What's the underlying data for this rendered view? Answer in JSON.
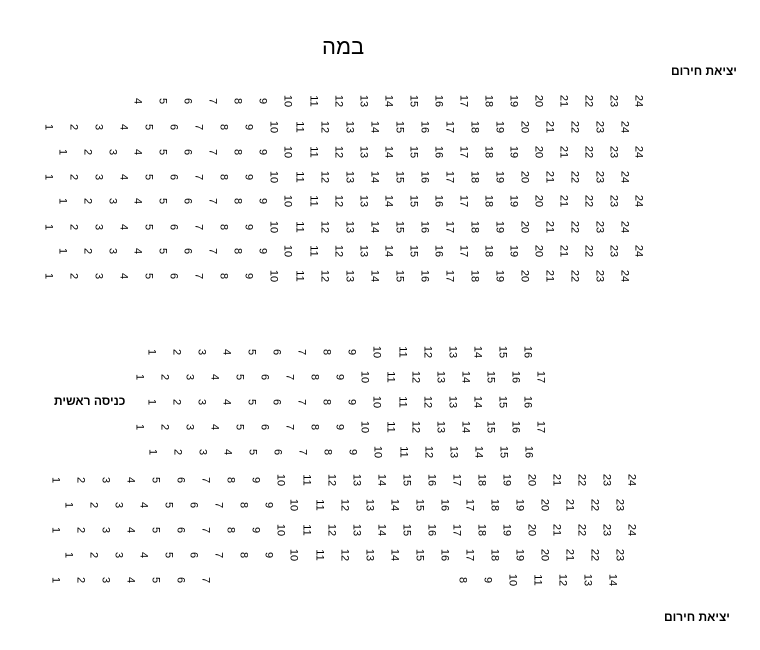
{
  "labels": {
    "stage": "במה",
    "exit_top": "יציאת חירום",
    "exit_bottom": "יציאת חירום",
    "main_entrance": "כניסה ראשית"
  },
  "rows": [
    {
      "seats": [
        4,
        5,
        6,
        7,
        8,
        9,
        10,
        11,
        12,
        13,
        14,
        15,
        16,
        17,
        18,
        19,
        20,
        21,
        22,
        23,
        24
      ]
    },
    {
      "seats": [
        1,
        2,
        3,
        4,
        5,
        6,
        7,
        8,
        9,
        10,
        11,
        12,
        13,
        14,
        15,
        16,
        17,
        18,
        19,
        20,
        21,
        22,
        23,
        24
      ]
    },
    {
      "seats": [
        1,
        2,
        3,
        4,
        5,
        6,
        7,
        8,
        9,
        10,
        11,
        12,
        13,
        14,
        15,
        16,
        17,
        18,
        19,
        20,
        21,
        22,
        23,
        24
      ]
    },
    {
      "seats": [
        1,
        2,
        3,
        4,
        5,
        6,
        7,
        8,
        9,
        10,
        11,
        12,
        13,
        14,
        15,
        16,
        17,
        18,
        19,
        20,
        21,
        22,
        23,
        24
      ]
    },
    {
      "seats": [
        1,
        2,
        3,
        4,
        5,
        6,
        7,
        8,
        9,
        10,
        11,
        12,
        13,
        14,
        15,
        16,
        17,
        18,
        19,
        20,
        21,
        22,
        23,
        24
      ]
    },
    {
      "seats": [
        1,
        2,
        3,
        4,
        5,
        6,
        7,
        8,
        9,
        10,
        11,
        12,
        13,
        14,
        15,
        16,
        17,
        18,
        19,
        20,
        21,
        22,
        23,
        24
      ]
    },
    {
      "seats": [
        1,
        2,
        3,
        4,
        5,
        6,
        7,
        8,
        9,
        10,
        11,
        12,
        13,
        14,
        15,
        16,
        17,
        18,
        19,
        20,
        21,
        22,
        23,
        24
      ]
    },
    {
      "seats": [
        1,
        2,
        3,
        4,
        5,
        6,
        7,
        8,
        9,
        10,
        11,
        12,
        13,
        14,
        15,
        16,
        17,
        18,
        19,
        20,
        21,
        22,
        23,
        24
      ]
    },
    {
      "seats": [
        1,
        2,
        3,
        4,
        5,
        6,
        7,
        8,
        9,
        10,
        11,
        12,
        13,
        14,
        15,
        16
      ]
    },
    {
      "seats": [
        1,
        2,
        3,
        4,
        5,
        6,
        7,
        8,
        9,
        10,
        11,
        12,
        13,
        14,
        15,
        16,
        17
      ]
    },
    {
      "seats": [
        1,
        2,
        3,
        4,
        5,
        6,
        7,
        8,
        9,
        10,
        11,
        12,
        13,
        14,
        15,
        16
      ]
    },
    {
      "seats": [
        1,
        2,
        3,
        4,
        5,
        6,
        7,
        8,
        9,
        10,
        11,
        12,
        13,
        14,
        15,
        16,
        17
      ]
    },
    {
      "seats": [
        1,
        2,
        3,
        4,
        5,
        6,
        7,
        8,
        9,
        10,
        11,
        12,
        13,
        14,
        15,
        16
      ]
    },
    {
      "seats": [
        1,
        2,
        3,
        4,
        5,
        6,
        7,
        8,
        9,
        10,
        11,
        12,
        13,
        14,
        15,
        16,
        17,
        18,
        19,
        20,
        21,
        22,
        23,
        24
      ]
    },
    {
      "seats": [
        1,
        2,
        3,
        4,
        5,
        6,
        7,
        8,
        9,
        10,
        11,
        12,
        13,
        14,
        15,
        16,
        17,
        18,
        19,
        20,
        21,
        22,
        23
      ]
    },
    {
      "seats": [
        1,
        2,
        3,
        4,
        5,
        6,
        7,
        8,
        9,
        10,
        11,
        12,
        13,
        14,
        15,
        16,
        17,
        18,
        19,
        20,
        21,
        22,
        23,
        24
      ]
    },
    {
      "seats": [
        1,
        2,
        3,
        4,
        5,
        6,
        7,
        8,
        9,
        10,
        11,
        12,
        13,
        14,
        15,
        16,
        17,
        18,
        19,
        20,
        21,
        22,
        23
      ]
    },
    {
      "seats": [
        1,
        2,
        3,
        4,
        5,
        6,
        7,
        8,
        9,
        10,
        11,
        12,
        13,
        14
      ]
    }
  ]
}
